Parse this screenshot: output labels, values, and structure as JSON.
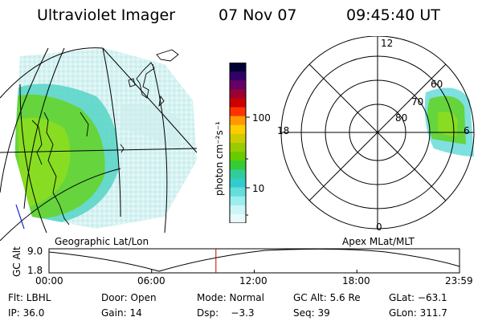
{
  "header": {
    "title": "Ultraviolet Imager",
    "date": "07 Nov 07",
    "time": "09:45:40 UT"
  },
  "colorbar": {
    "label": "photon cm⁻²s⁻¹",
    "ticks": [
      "100",
      "10"
    ],
    "colors": [
      "#000033",
      "#330066",
      "#660066",
      "#990033",
      "#cc0000",
      "#ff3300",
      "#ff9900",
      "#ffcc00",
      "#cccc00",
      "#99cc00",
      "#66cc00",
      "#33cc33",
      "#33cc99",
      "#33cccc",
      "#66dddd",
      "#99eeee",
      "#ccf5f5",
      "#e8fafa"
    ]
  },
  "polar": {
    "label_top": "12",
    "label_left": "18",
    "label_right": "6",
    "label_bottom": "0",
    "rings": [
      "80",
      "70",
      "60"
    ]
  },
  "alt_panel": {
    "left_caption": "Geographic Lat/Lon",
    "right_caption": "Apex MLat/MLT",
    "ylabel": "GC Alt",
    "ymax": "9.0",
    "ymin": "1.8",
    "xticks": [
      "00:00",
      "06:00",
      "12:00",
      "18:00",
      "23:59"
    ],
    "current_marker_hour": 9.76,
    "marker_color": "#cc0000"
  },
  "info": {
    "row1": {
      "flt": "Flt: LBHL",
      "door": "Door: Open",
      "mode": "Mode: Normal",
      "gcalt": "GC Alt: 5.6 Re",
      "glat": "GLat:  −63.1"
    },
    "row2": {
      "ip": "IP: 36.0",
      "gain": "Gain: 14",
      "dsp": "Dsp:    −3.3",
      "seq": "Seq: 39",
      "glon": "GLon: 311.7"
    }
  }
}
